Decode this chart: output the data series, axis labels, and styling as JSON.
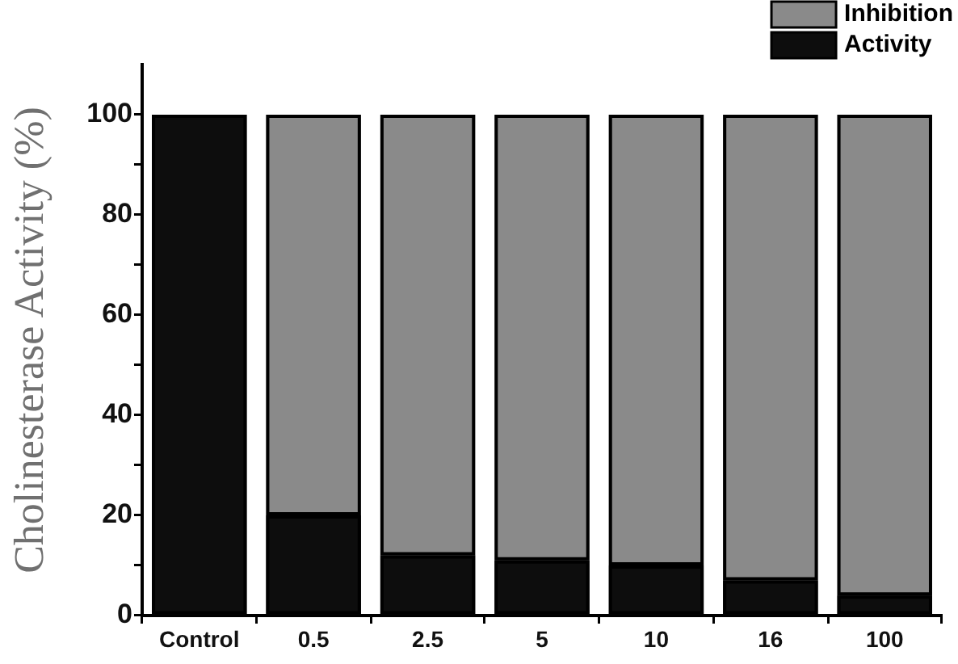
{
  "chart_data": {
    "type": "bar",
    "stacked": true,
    "ylabel": "Cholinesterase Activity (%)",
    "categories": [
      "Control",
      "0.5",
      "2.5",
      "5",
      "10",
      "16",
      "100"
    ],
    "series": [
      {
        "name": "Activity",
        "color": "#0d0d0d",
        "values": [
          100,
          20,
          12,
          11,
          10,
          7,
          4
        ]
      },
      {
        "name": "Inhibition",
        "color": "#8a8a8a",
        "values": [
          0,
          80,
          88,
          89,
          90,
          93,
          96
        ]
      }
    ],
    "ylim": [
      0,
      110
    ],
    "yticks": [
      0,
      {
        "value": 10,
        "label": null
      },
      20,
      {
        "value": 30,
        "label": null
      },
      40,
      {
        "value": 50,
        "label": null
      },
      60,
      {
        "value": 70,
        "label": null
      },
      80,
      {
        "value": 90,
        "label": null
      },
      100
    ],
    "legend": "top right"
  }
}
